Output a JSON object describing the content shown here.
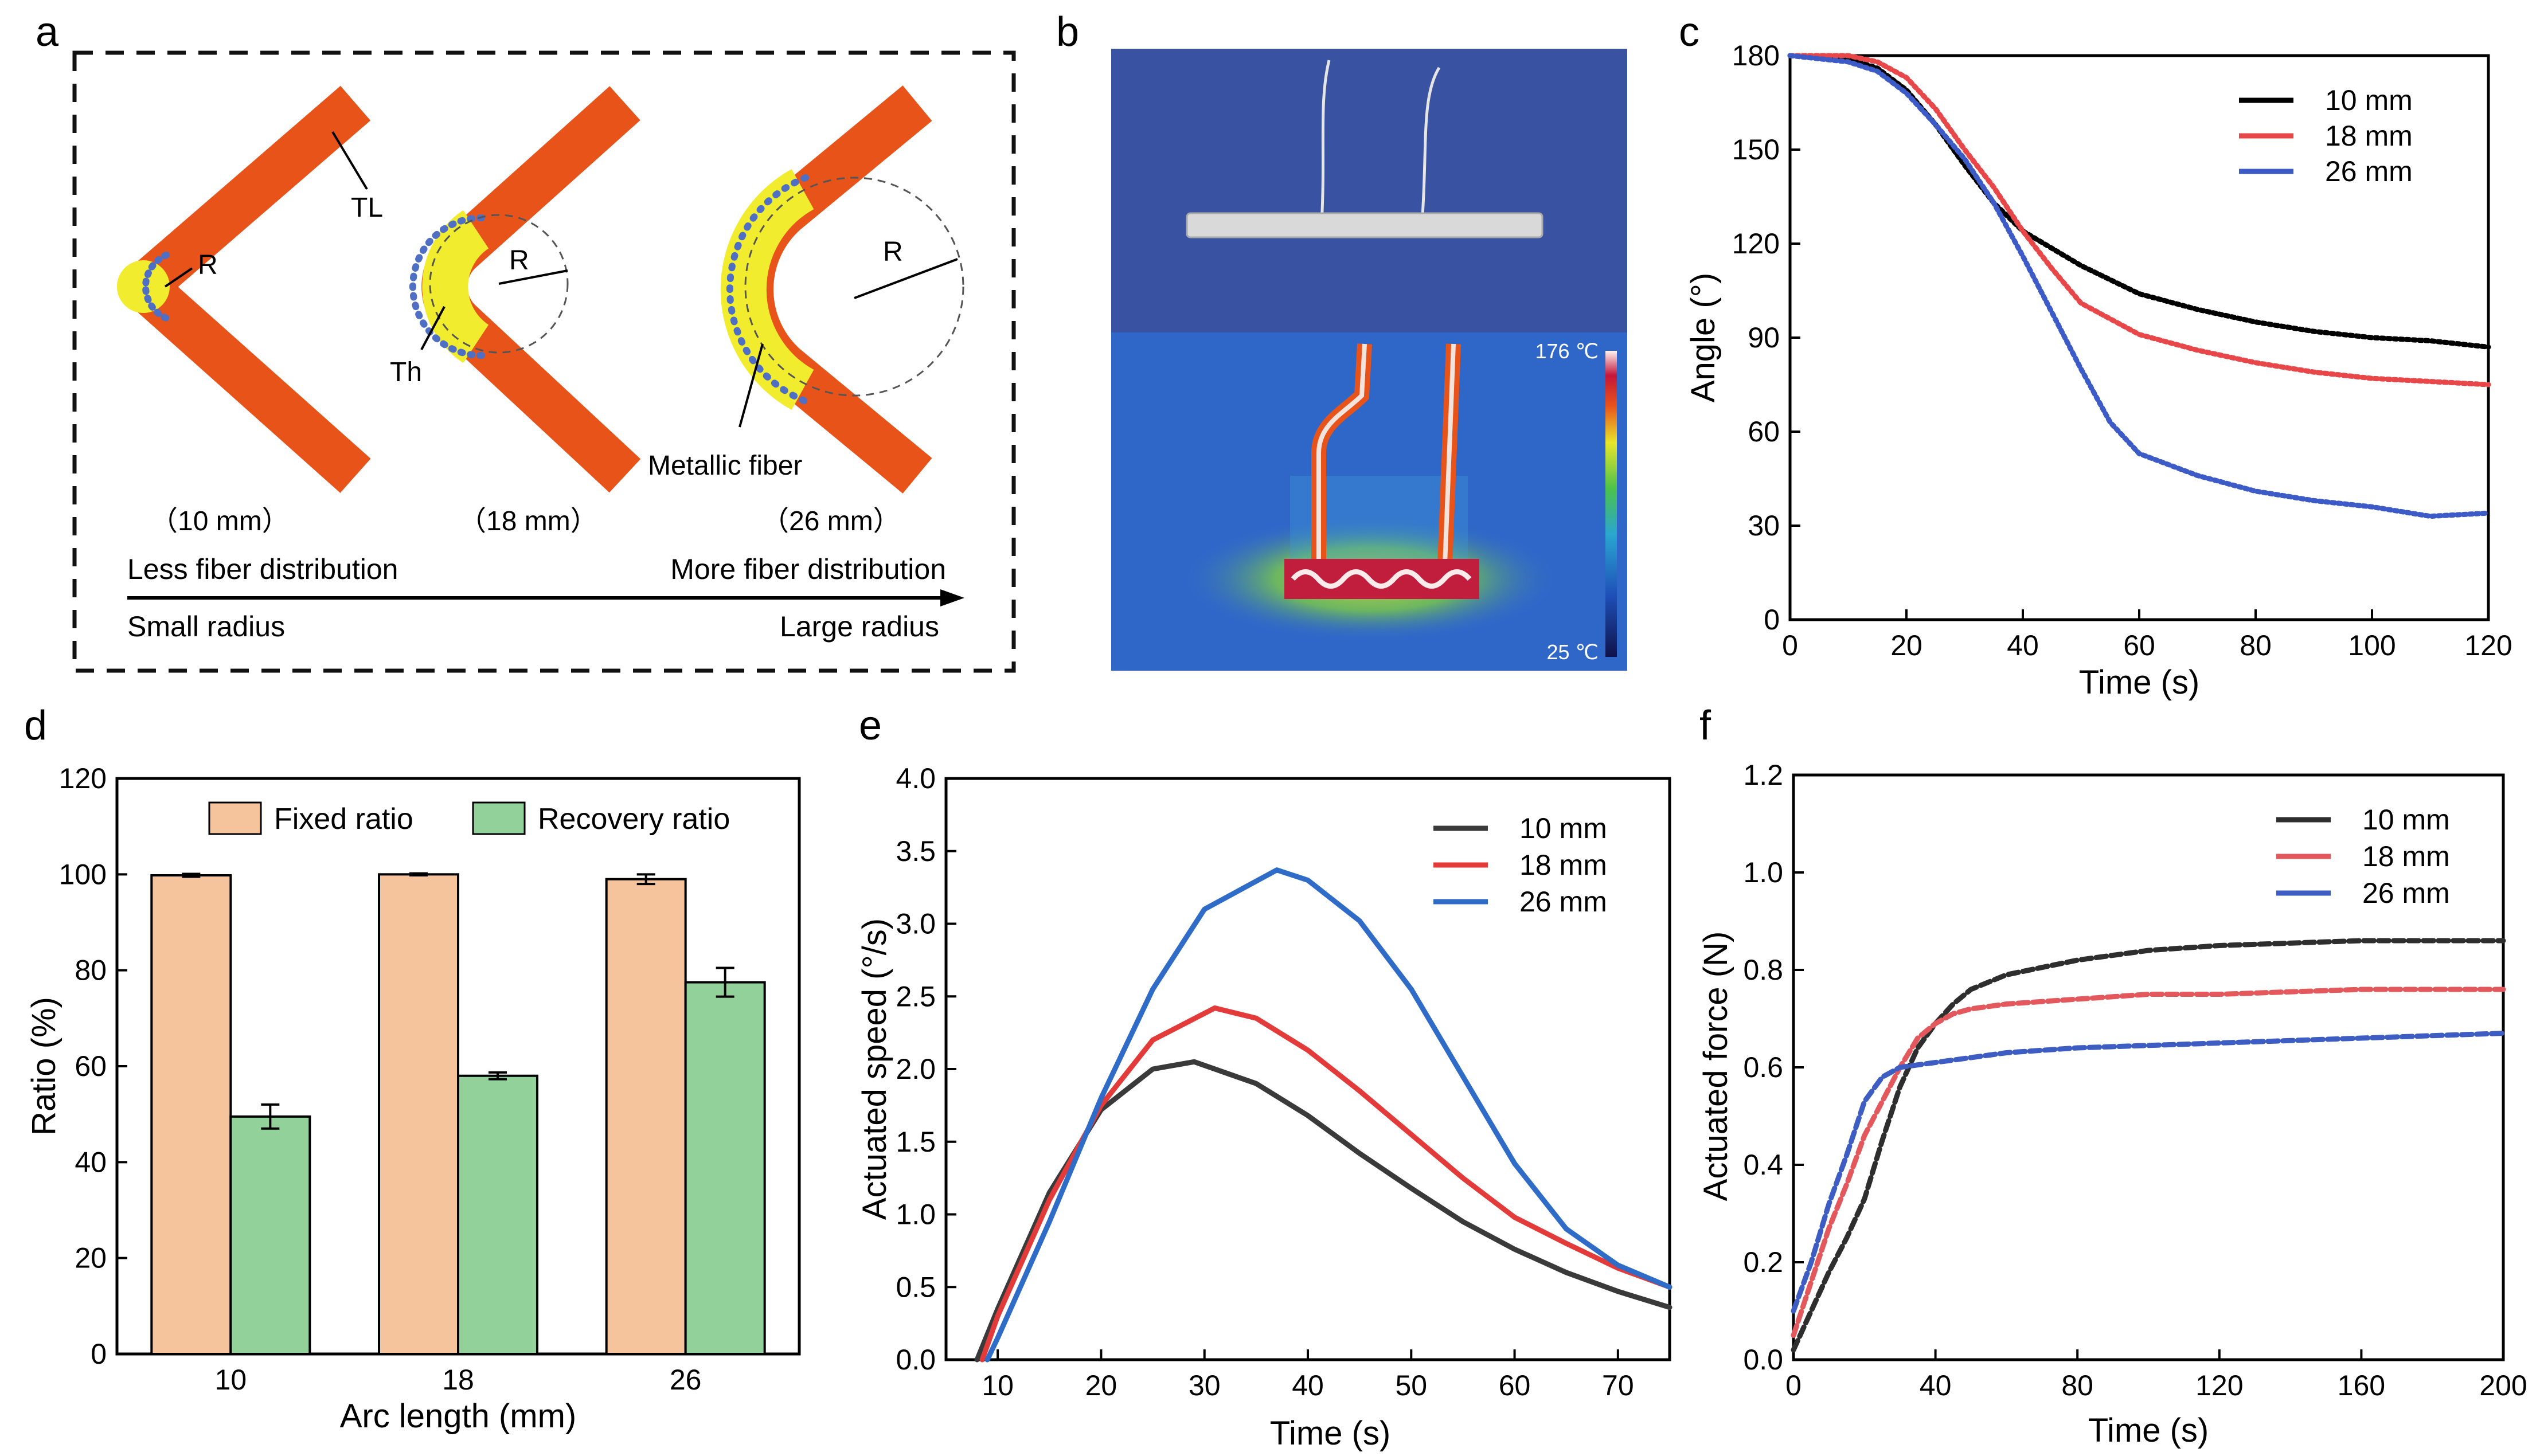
{
  "panel_letters": {
    "a": "a",
    "b": "b",
    "c": "c",
    "d": "d",
    "e": "e",
    "f": "f"
  },
  "schematic": {
    "label_TL": "TL",
    "label_Th": "Th",
    "label_R": "R",
    "label_metallic_fiber": "Metallic fiber",
    "lengths": [
      "（10 mm）",
      "（18 mm）",
      "（26 mm）"
    ],
    "less_fiber": "Less fiber distribution",
    "more_fiber": "More fiber distribution",
    "small_radius": "Small radius",
    "large_radius": "Large radius",
    "colors": {
      "orange": "#E8531A",
      "yellow": "#F2EC2E",
      "fiber": "#4E6FC4"
    }
  },
  "photo": {
    "scale_max": "176 ℃",
    "scale_min": "25 ℃",
    "colors": {
      "photo_bg": "#3E57A8",
      "thermal_bg": "#2F67C9"
    }
  },
  "chart_data": [
    {
      "panel": "c",
      "type": "line",
      "xlabel": "Time (s)",
      "ylabel": "Angle (°)",
      "xlim": [
        0,
        120
      ],
      "ylim": [
        0,
        180
      ],
      "xticks": [
        0,
        20,
        40,
        60,
        80,
        100,
        120
      ],
      "yticks": [
        0,
        30,
        60,
        90,
        120,
        150,
        180
      ],
      "legend_position": "top-right",
      "series": [
        {
          "name": "10 mm",
          "color": "#000000",
          "x": [
            0,
            10,
            15,
            20,
            25,
            30,
            35,
            40,
            50,
            60,
            70,
            80,
            90,
            100,
            110,
            120
          ],
          "y": [
            180,
            179,
            176,
            169,
            158,
            145,
            133,
            124,
            113,
            104,
            99,
            95,
            92,
            90,
            89,
            87
          ]
        },
        {
          "name": "18 mm",
          "color": "#E8474A",
          "x": [
            0,
            10,
            15,
            20,
            25,
            30,
            35,
            40,
            45,
            50,
            60,
            70,
            80,
            90,
            100,
            110,
            120
          ],
          "y": [
            180,
            180,
            178,
            173,
            163,
            150,
            138,
            124,
            112,
            101,
            91,
            86,
            82,
            79,
            77,
            76,
            75
          ]
        },
        {
          "name": "26 mm",
          "color": "#3C5BC6",
          "x": [
            0,
            10,
            15,
            20,
            25,
            30,
            35,
            40,
            45,
            50,
            55,
            60,
            70,
            80,
            90,
            100,
            110,
            120
          ],
          "y": [
            180,
            178,
            175,
            168,
            158,
            147,
            133,
            116,
            98,
            80,
            63,
            53,
            46,
            41,
            38,
            36,
            33,
            34
          ]
        }
      ]
    },
    {
      "panel": "d",
      "type": "bar",
      "xlabel": "Arc length (mm)",
      "ylabel": "Ratio (%)",
      "ylim": [
        0,
        120
      ],
      "yticks": [
        0,
        20,
        40,
        60,
        80,
        100,
        120
      ],
      "categories": [
        "10",
        "18",
        "26"
      ],
      "legend_position": "top",
      "series": [
        {
          "name": "Fixed ratio",
          "color": "#F5C49C",
          "values": [
            99.8,
            100,
            99
          ],
          "errors": [
            0.3,
            0.2,
            1.0
          ]
        },
        {
          "name": "Recovery ratio",
          "color": "#93D19A",
          "values": [
            49.5,
            58,
            77.5
          ],
          "errors": [
            2.5,
            0.7,
            3.0
          ]
        }
      ]
    },
    {
      "panel": "e",
      "type": "line",
      "xlabel": "Time (s)",
      "ylabel": "Actuated speed (°/s)",
      "xlim": [
        5,
        75
      ],
      "ylim": [
        0,
        4.0
      ],
      "xticks": [
        10,
        20,
        30,
        40,
        50,
        60,
        70
      ],
      "yticks": [
        0.0,
        0.5,
        1.0,
        1.5,
        2.0,
        2.5,
        3.0,
        3.5,
        4.0
      ],
      "legend_position": "top-right",
      "series": [
        {
          "name": "10 mm",
          "color": "#3A3A3A",
          "x": [
            8,
            10,
            15,
            20,
            25,
            29,
            35,
            40,
            45,
            50,
            55,
            60,
            65,
            70,
            75
          ],
          "y": [
            0.0,
            0.35,
            1.15,
            1.72,
            2.0,
            2.05,
            1.9,
            1.68,
            1.42,
            1.18,
            0.95,
            0.76,
            0.6,
            0.47,
            0.36
          ]
        },
        {
          "name": "18 mm",
          "color": "#E33B3A",
          "x": [
            8.5,
            10,
            15,
            20,
            25,
            31,
            35,
            40,
            45,
            50,
            55,
            60,
            65,
            70,
            75
          ],
          "y": [
            0.0,
            0.3,
            1.1,
            1.75,
            2.2,
            2.42,
            2.35,
            2.13,
            1.85,
            1.55,
            1.25,
            0.98,
            0.8,
            0.63,
            0.5
          ]
        },
        {
          "name": "26 mm",
          "color": "#2F6CC8",
          "x": [
            9,
            10,
            15,
            20,
            25,
            30,
            37,
            40,
            45,
            50,
            55,
            60,
            65,
            70,
            75
          ],
          "y": [
            0.0,
            0.15,
            0.95,
            1.8,
            2.55,
            3.1,
            3.37,
            3.3,
            3.02,
            2.55,
            1.95,
            1.35,
            0.9,
            0.65,
            0.5
          ]
        }
      ]
    },
    {
      "panel": "f",
      "type": "line",
      "xlabel": "Time (s)",
      "ylabel": "Actuated force (N)",
      "xlim": [
        0,
        200
      ],
      "ylim": [
        0,
        1.2
      ],
      "xticks": [
        0,
        40,
        80,
        120,
        160,
        200
      ],
      "yticks": [
        0.0,
        0.2,
        0.4,
        0.6,
        0.8,
        1.0,
        1.2
      ],
      "legend_position": "top-right",
      "series": [
        {
          "name": "10 mm",
          "color": "#2E2E2E",
          "x": [
            0,
            5,
            10,
            15,
            20,
            25,
            30,
            35,
            40,
            45,
            50,
            60,
            80,
            100,
            120,
            160,
            200
          ],
          "y": [
            0.02,
            0.1,
            0.18,
            0.25,
            0.33,
            0.45,
            0.56,
            0.64,
            0.69,
            0.73,
            0.76,
            0.79,
            0.82,
            0.84,
            0.85,
            0.86,
            0.86
          ]
        },
        {
          "name": "18 mm",
          "color": "#E3585C",
          "x": [
            0,
            5,
            10,
            15,
            20,
            25,
            30,
            35,
            40,
            45,
            50,
            60,
            80,
            100,
            120,
            160,
            200
          ],
          "y": [
            0.05,
            0.16,
            0.27,
            0.36,
            0.46,
            0.53,
            0.6,
            0.66,
            0.69,
            0.71,
            0.72,
            0.73,
            0.74,
            0.75,
            0.75,
            0.76,
            0.76
          ]
        },
        {
          "name": "26 mm",
          "color": "#3D5DC2",
          "x": [
            0,
            5,
            10,
            15,
            20,
            25,
            30,
            40,
            50,
            60,
            80,
            100,
            120,
            160,
            200
          ],
          "y": [
            0.1,
            0.2,
            0.32,
            0.42,
            0.53,
            0.58,
            0.6,
            0.61,
            0.62,
            0.63,
            0.64,
            0.645,
            0.65,
            0.66,
            0.67
          ]
        }
      ]
    }
  ]
}
